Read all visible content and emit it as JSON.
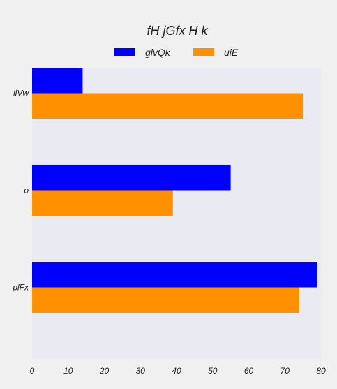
{
  "chart_data": {
    "type": "bar",
    "orientation": "horizontal",
    "title": "fH jGfx H k",
    "categories": [
      "ilVw",
      "o",
      "plFx"
    ],
    "series": [
      {
        "name": "glvQk",
        "values": [
          14,
          55,
          79
        ],
        "color": "#0000ff"
      },
      {
        "name": "uiE",
        "values": [
          75,
          39,
          74
        ],
        "color": "#ff9000"
      }
    ],
    "xlim": [
      0,
      80
    ],
    "xticks": [
      0,
      10,
      20,
      30,
      40,
      50,
      60,
      70,
      80
    ],
    "grid": false,
    "legend_position": "top-center",
    "background_color": "#f0f0f0",
    "plot_background_color": "#eaeaf2"
  }
}
